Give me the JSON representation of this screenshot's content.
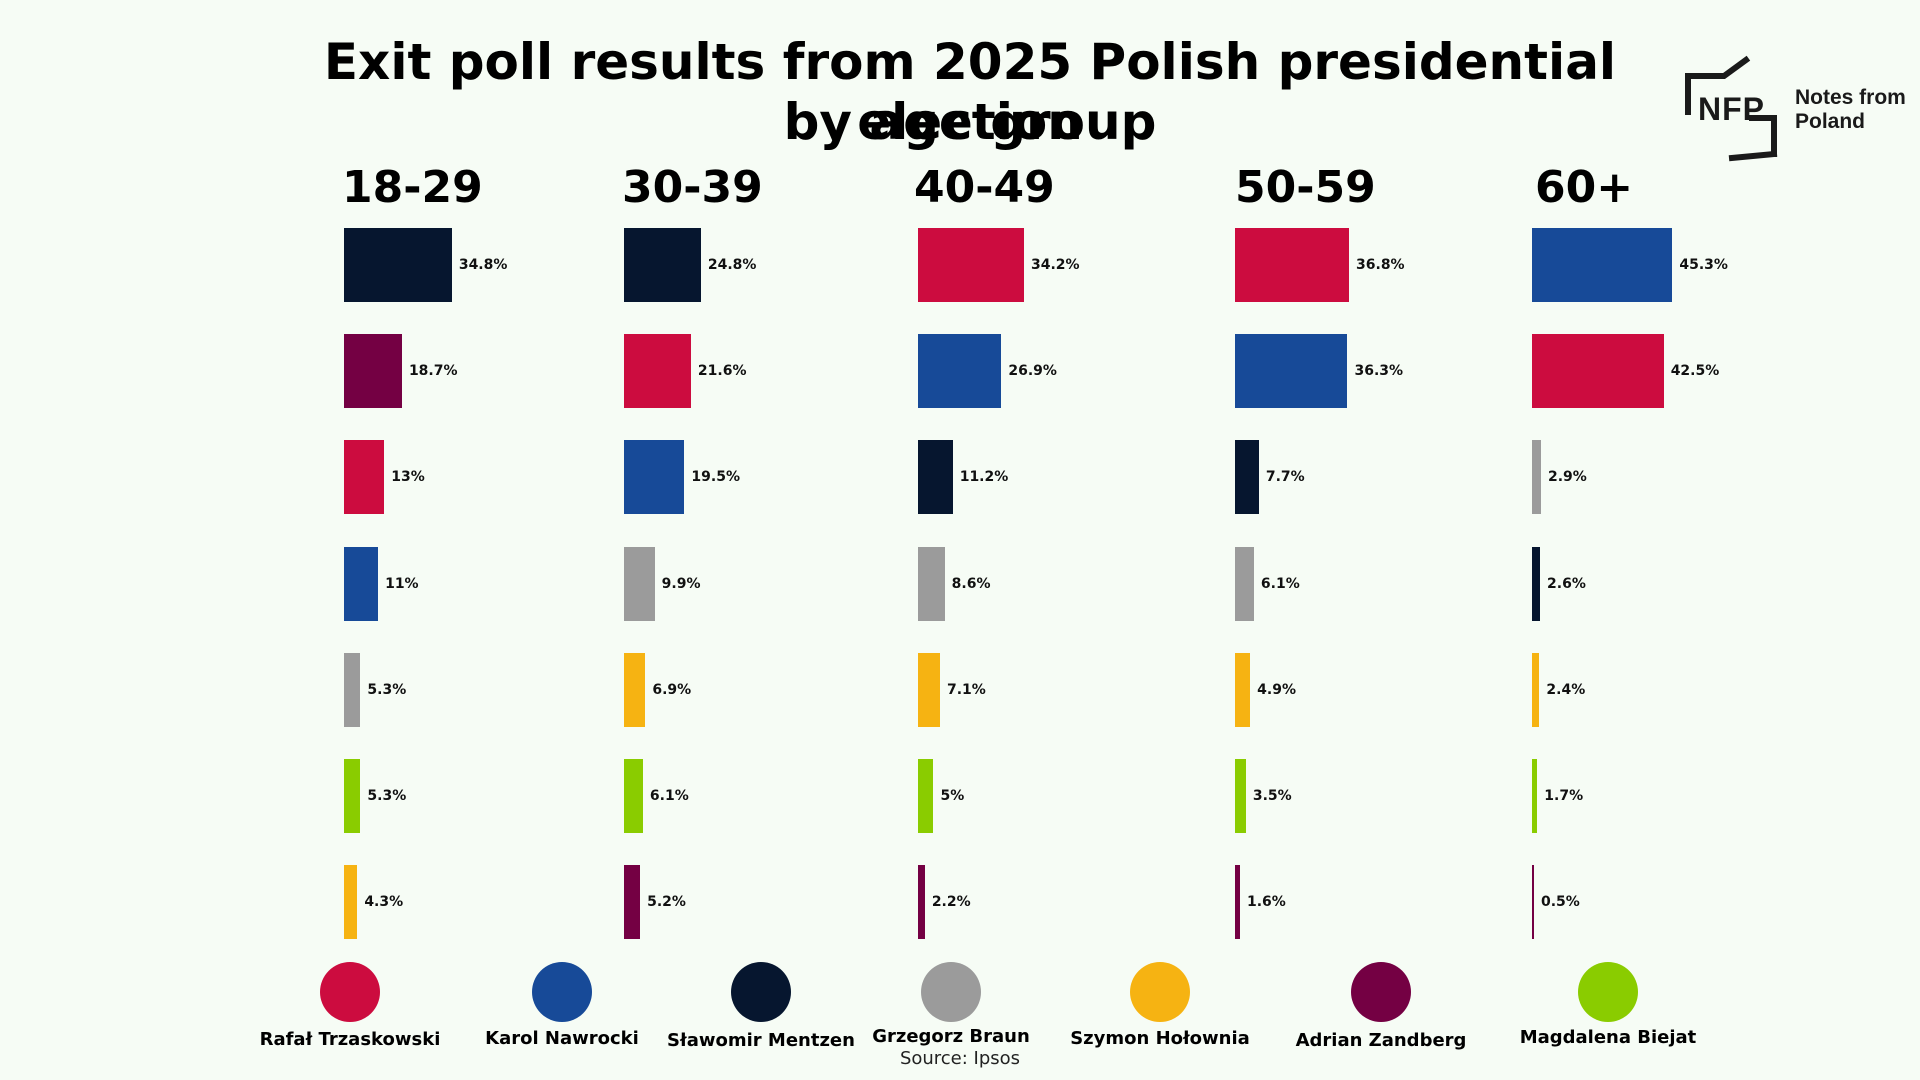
{
  "chart_data": {
    "type": "bar",
    "title": "Exit poll results from 2025 Polish presidential election by age group",
    "title_lines": [
      "Exit poll results from 2025 Polish presidential election",
      "by age group"
    ],
    "unit": "%",
    "candidates": [
      {
        "name": "Rafał Trzaskowski",
        "color": "#cc0c3f"
      },
      {
        "name": "Karol Nawrocki",
        "color": "#174a98"
      },
      {
        "name": "Sławomir Mentzen",
        "color": "#06162f"
      },
      {
        "name": "Grzegorz Braun",
        "color": "#9b9b9b"
      },
      {
        "name": "Szymon Hołownia",
        "color": "#f6b312"
      },
      {
        "name": "Adrian Zandberg",
        "color": "#740043"
      },
      {
        "name": "Magdalena Biejat",
        "color": "#8acc00"
      }
    ],
    "groups": [
      {
        "label": "18-29",
        "bars": [
          {
            "candidate": "Sławomir Mentzen",
            "value": 34.8,
            "label": "34.8%"
          },
          {
            "candidate": "Adrian Zandberg",
            "value": 18.7,
            "label": "18.7%"
          },
          {
            "candidate": "Rafał Trzaskowski",
            "value": 13,
            "label": "13%"
          },
          {
            "candidate": "Karol Nawrocki",
            "value": 11,
            "label": "11%"
          },
          {
            "candidate": "Grzegorz Braun",
            "value": 5.3,
            "label": "5.3%"
          },
          {
            "candidate": "Magdalena Biejat",
            "value": 5.3,
            "label": "5.3%"
          },
          {
            "candidate": "Szymon Hołownia",
            "value": 4.3,
            "label": "4.3%"
          }
        ]
      },
      {
        "label": "30-39",
        "bars": [
          {
            "candidate": "Sławomir Mentzen",
            "value": 24.8,
            "label": "24.8%"
          },
          {
            "candidate": "Rafał Trzaskowski",
            "value": 21.6,
            "label": "21.6%"
          },
          {
            "candidate": "Karol Nawrocki",
            "value": 19.5,
            "label": "19.5%"
          },
          {
            "candidate": "Grzegorz Braun",
            "value": 9.9,
            "label": "9.9%"
          },
          {
            "candidate": "Szymon Hołownia",
            "value": 6.9,
            "label": "6.9%"
          },
          {
            "candidate": "Magdalena Biejat",
            "value": 6.1,
            "label": "6.1%"
          },
          {
            "candidate": "Adrian Zandberg",
            "value": 5.2,
            "label": "5.2%"
          }
        ]
      },
      {
        "label": "40-49",
        "bars": [
          {
            "candidate": "Rafał Trzaskowski",
            "value": 34.2,
            "label": "34.2%"
          },
          {
            "candidate": "Karol Nawrocki",
            "value": 26.9,
            "label": "26.9%"
          },
          {
            "candidate": "Sławomir Mentzen",
            "value": 11.2,
            "label": "11.2%"
          },
          {
            "candidate": "Grzegorz Braun",
            "value": 8.6,
            "label": "8.6%"
          },
          {
            "candidate": "Szymon Hołownia",
            "value": 7.1,
            "label": "7.1%"
          },
          {
            "candidate": "Magdalena Biejat",
            "value": 5,
            "label": "5%"
          },
          {
            "candidate": "Adrian Zandberg",
            "value": 2.2,
            "label": "2.2%"
          }
        ]
      },
      {
        "label": "50-59",
        "bars": [
          {
            "candidate": "Rafał Trzaskowski",
            "value": 36.8,
            "label": "36.8%"
          },
          {
            "candidate": "Karol Nawrocki",
            "value": 36.3,
            "label": "36.3%"
          },
          {
            "candidate": "Sławomir Mentzen",
            "value": 7.7,
            "label": "7.7%"
          },
          {
            "candidate": "Grzegorz Braun",
            "value": 6.1,
            "label": "6.1%"
          },
          {
            "candidate": "Szymon Hołownia",
            "value": 4.9,
            "label": "4.9%"
          },
          {
            "candidate": "Magdalena Biejat",
            "value": 3.5,
            "label": "3.5%"
          },
          {
            "candidate": "Adrian Zandberg",
            "value": 1.6,
            "label": "1.6%"
          }
        ]
      },
      {
        "label": "60+",
        "bars": [
          {
            "candidate": "Karol Nawrocki",
            "value": 45.3,
            "label": "45.3%"
          },
          {
            "candidate": "Rafał Trzaskowski",
            "value": 42.5,
            "label": "42.5%"
          },
          {
            "candidate": "Grzegorz Braun",
            "value": 2.9,
            "label": "2.9%"
          },
          {
            "candidate": "Sławomir Mentzen",
            "value": 2.6,
            "label": "2.6%"
          },
          {
            "candidate": "Szymon Hołownia",
            "value": 2.4,
            "label": "2.4%"
          },
          {
            "candidate": "Magdalena Biejat",
            "value": 1.7,
            "label": "1.7%"
          },
          {
            "candidate": "Adrian Zandberg",
            "value": 0.5,
            "label": "0.5%"
          }
        ]
      }
    ],
    "source": "Source: Ipsos"
  },
  "branding": {
    "logo_mark": "NFP",
    "logo_text_line1": "Notes from",
    "logo_text_line2": "Poland",
    "logo_color": "#1a1a1a"
  }
}
